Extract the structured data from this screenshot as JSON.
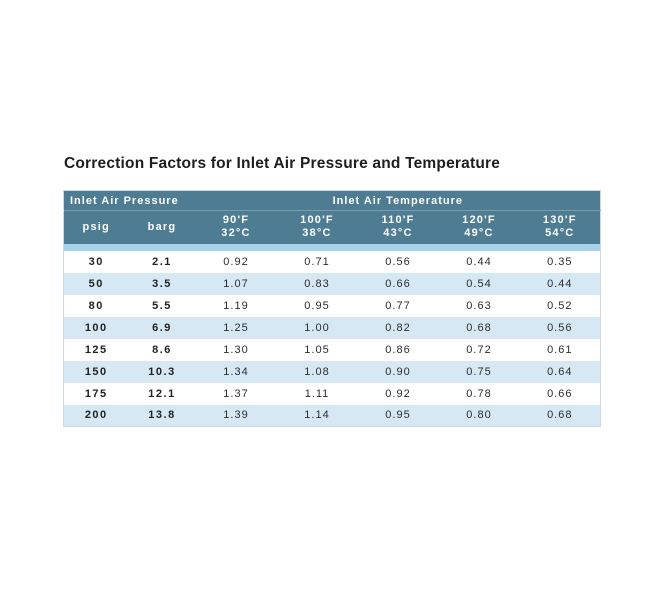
{
  "title": "Correction Factors for Inlet Air Pressure and Temperature",
  "table": {
    "group_headers": [
      {
        "label": "Inlet Air Pressure"
      },
      {
        "label": "Inlet Air Temperature"
      }
    ],
    "columns": [
      {
        "label": "psig"
      },
      {
        "label": "barg"
      },
      {
        "f": "90'F",
        "c": "32°C"
      },
      {
        "f": "100'F",
        "c": "38°C"
      },
      {
        "f": "110'F",
        "c": "43°C"
      },
      {
        "f": "120'F",
        "c": "49°C"
      },
      {
        "f": "130'F",
        "c": "54°C"
      }
    ],
    "rows": [
      [
        "30",
        "2.1",
        "0.92",
        "0.71",
        "0.56",
        "0.44",
        "0.35"
      ],
      [
        "50",
        "3.5",
        "1.07",
        "0.83",
        "0.66",
        "0.54",
        "0.44"
      ],
      [
        "80",
        "5.5",
        "1.19",
        "0.95",
        "0.77",
        "0.63",
        "0.52"
      ],
      [
        "100",
        "6.9",
        "1.25",
        "1.00",
        "0.82",
        "0.68",
        "0.56"
      ],
      [
        "125",
        "8.6",
        "1.30",
        "1.05",
        "0.86",
        "0.72",
        "0.61"
      ],
      [
        "150",
        "10.3",
        "1.34",
        "1.08",
        "0.90",
        "0.75",
        "0.64"
      ],
      [
        "175",
        "12.1",
        "1.37",
        "1.11",
        "0.92",
        "0.78",
        "0.66"
      ],
      [
        "200",
        "13.8",
        "1.39",
        "1.14",
        "0.95",
        "0.80",
        "0.68"
      ]
    ],
    "colors": {
      "header_bg": "#4e7c92",
      "header_text": "#ffffff",
      "spacer_strip": "#a8d2e9",
      "row_alt": "#d6e8f4",
      "row_default": "#ffffff",
      "body_text": "#2d2d2d",
      "title_text": "#1e1e1e",
      "outer_border": "#cdd9e2"
    }
  }
}
